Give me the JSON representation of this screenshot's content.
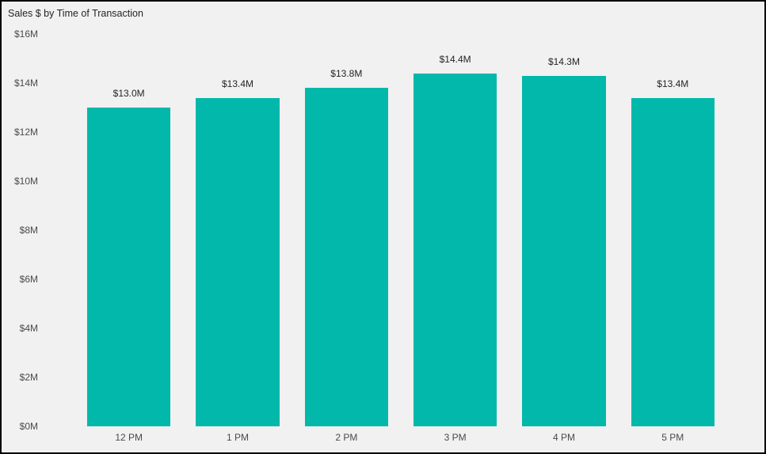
{
  "chart": {
    "title": "Sales $ by Time of Transaction"
  },
  "chart_data": {
    "type": "bar",
    "title": "Sales $ by Time of Transaction",
    "categories": [
      "12 PM",
      "1 PM",
      "2 PM",
      "3 PM",
      "4 PM",
      "5 PM"
    ],
    "values": [
      13.0,
      13.4,
      13.8,
      14.4,
      14.3,
      13.4
    ],
    "value_labels": [
      "$13.0M",
      "$13.4M",
      "$13.8M",
      "$14.4M",
      "$14.3M",
      "$13.4M"
    ],
    "xlabel": "",
    "ylabel": "",
    "ylim": [
      0,
      16
    ],
    "y_tick_labels": [
      "$16M",
      "$14M",
      "$12M",
      "$10M",
      "$8M",
      "$6M",
      "$4M",
      "$2M",
      "$0M"
    ],
    "y_tick_values": [
      16,
      14,
      12,
      10,
      8,
      6,
      4,
      2,
      0
    ],
    "grid": false,
    "legend": "none",
    "bar_color": "#01B8AA",
    "background_color": "#F1F1F1",
    "title_color": "#252423",
    "axis_text_color": "#4A4A4A"
  }
}
